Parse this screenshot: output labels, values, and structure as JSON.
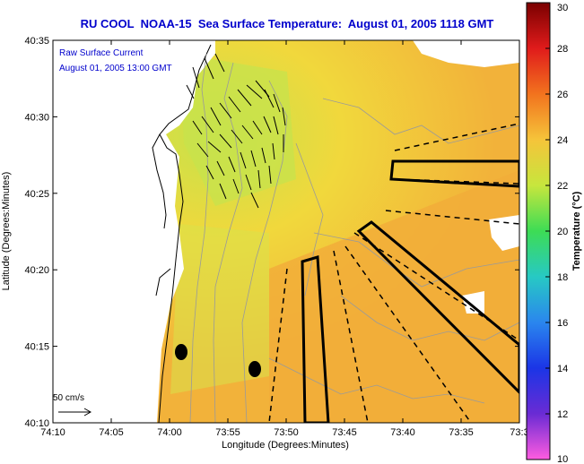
{
  "title": "RU COOL  NOAA-15  Sea Surface Temperature:  August 01, 2005 1118 GMT",
  "map": {
    "annotation_line1": "Raw Surface Current",
    "annotation_line2": "August 01, 2005 13:00 GMT",
    "xlabel": "Longitude (Degrees:Minutes)",
    "ylabel": "Latitude (Degrees:Minutes)",
    "x_ticks": [
      "74:10",
      "74:05",
      "74:00",
      "73:55",
      "73:50",
      "73:45",
      "73:40",
      "73:35",
      "73:3"
    ],
    "y_ticks": [
      "40:35",
      "40:30",
      "40:25",
      "40:20",
      "40:15",
      "40:10"
    ],
    "scale_label": "50 cm/s"
  },
  "colorbar": {
    "title": "Temperature (°C)",
    "ticks": [
      "30",
      "28",
      "26",
      "24",
      "22",
      "20",
      "18",
      "16",
      "14",
      "12",
      "10"
    ],
    "min": 10,
    "max": 30
  },
  "colors": {
    "title": "#0000cc",
    "sst_warm": "#f2a83a",
    "sst_mid": "#f5dc3c",
    "sst_cool": "#c6e24a"
  }
}
